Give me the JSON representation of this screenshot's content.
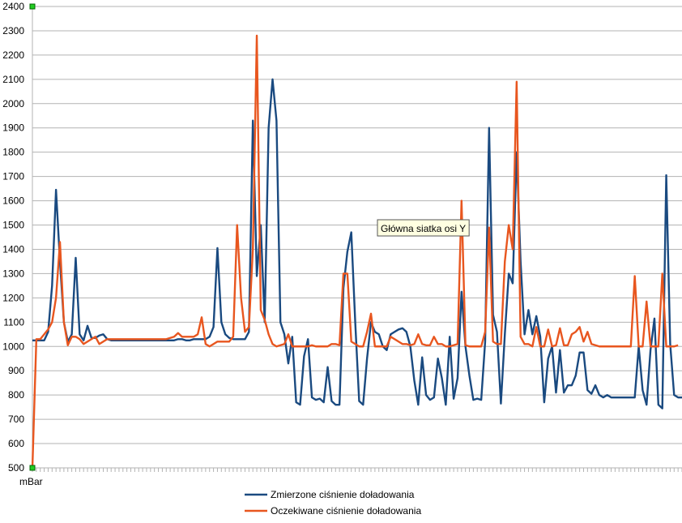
{
  "chart_data": {
    "type": "line",
    "ylim": [
      500,
      2400
    ],
    "yticks": [
      2400,
      2300,
      2200,
      2100,
      2000,
      1900,
      1800,
      1700,
      1600,
      1500,
      1400,
      1300,
      1200,
      1100,
      1000,
      900,
      800,
      700,
      600,
      500
    ],
    "xlabel": "mBar",
    "grid": "horizontal",
    "legend_position": "bottom",
    "series": [
      {
        "name": "Zmierzone ciśnienie doładowania",
        "color": "#1a4a80",
        "values": [
          1025,
          1025,
          1025,
          1025,
          1060,
          1250,
          1645,
          1350,
          1100,
          1020,
          1050,
          1365,
          1050,
          1025,
          1085,
          1035,
          1035,
          1045,
          1050,
          1030,
          1025,
          1025,
          1025,
          1025,
          1025,
          1025,
          1025,
          1025,
          1025,
          1025,
          1025,
          1025,
          1025,
          1025,
          1025,
          1025,
          1025,
          1030,
          1030,
          1025,
          1025,
          1030,
          1030,
          1030,
          1030,
          1040,
          1080,
          1405,
          1100,
          1050,
          1035,
          1030,
          1030,
          1030,
          1030,
          1060,
          1930,
          1290,
          1500,
          1100,
          1900,
          2100,
          1930,
          1100,
          1050,
          930,
          1040,
          770,
          760,
          960,
          1030,
          790,
          780,
          785,
          770,
          915,
          775,
          760,
          760,
          1240,
          1390,
          1470,
          1100,
          775,
          760,
          950,
          1100,
          1060,
          1050,
          1000,
          985,
          1050,
          1060,
          1070,
          1075,
          1060,
          1000,
          860,
          760,
          955,
          800,
          780,
          790,
          950,
          870,
          760,
          1040,
          785,
          870,
          1225,
          1000,
          880,
          780,
          785,
          780,
          1020,
          1900,
          1130,
          1060,
          765,
          1050,
          1300,
          1260,
          1800,
          1350,
          1050,
          1150,
          1050,
          1125,
          1040,
          770,
          950,
          1000,
          810,
          985,
          810,
          840,
          840,
          880,
          975,
          975,
          820,
          805,
          840,
          800,
          790,
          800,
          790,
          790,
          790,
          790,
          790,
          790,
          790,
          1000,
          820,
          760,
          985,
          1115,
          760,
          745,
          1705,
          1010,
          800,
          790,
          790
        ]
      },
      {
        "name": "Oczekiwane ciśnienie doładowania",
        "color": "#e8561f",
        "values": [
          500,
          1030,
          1030,
          1050,
          1070,
          1100,
          1200,
          1430,
          1100,
          1005,
          1040,
          1040,
          1030,
          1010,
          1020,
          1030,
          1040,
          1010,
          1020,
          1030,
          1030,
          1030,
          1030,
          1030,
          1030,
          1030,
          1030,
          1030,
          1030,
          1030,
          1030,
          1030,
          1030,
          1030,
          1030,
          1035,
          1040,
          1055,
          1040,
          1040,
          1040,
          1040,
          1050,
          1120,
          1010,
          1000,
          1010,
          1020,
          1020,
          1020,
          1020,
          1040,
          1500,
          1200,
          1060,
          1080,
          1400,
          2280,
          1150,
          1110,
          1050,
          1010,
          1000,
          1005,
          1010,
          1050,
          1000,
          1000,
          1000,
          1000,
          1000,
          1005,
          1000,
          1000,
          1000,
          1000,
          1010,
          1010,
          1005,
          1300,
          1300,
          1020,
          1010,
          1000,
          1000,
          1060,
          1135,
          1000,
          1000,
          1000,
          1000,
          1040,
          1030,
          1020,
          1010,
          1010,
          1005,
          1010,
          1050,
          1010,
          1005,
          1005,
          1040,
          1010,
          1010,
          1000,
          1000,
          1005,
          1010,
          1600,
          1005,
          1000,
          1000,
          1000,
          1000,
          1060,
          1490,
          1020,
          1010,
          1010,
          1350,
          1500,
          1400,
          2090,
          1040,
          1010,
          1010,
          1000,
          1080,
          1000,
          1000,
          1070,
          1000,
          1005,
          1075,
          1005,
          1005,
          1050,
          1060,
          1080,
          1020,
          1060,
          1010,
          1005,
          1000,
          1000,
          1000,
          1000,
          1000,
          1000,
          1000,
          1000,
          1000,
          1290,
          1000,
          1000,
          1185,
          1000,
          1000,
          1000,
          1300,
          1000,
          1000,
          1000,
          1005
        ]
      }
    ]
  },
  "tooltip": {
    "text": "Główna siatka osi Y"
  }
}
